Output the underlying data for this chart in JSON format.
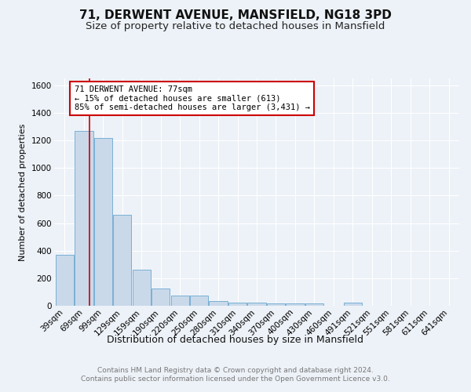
{
  "title": "71, DERWENT AVENUE, MANSFIELD, NG18 3PD",
  "subtitle": "Size of property relative to detached houses in Mansfield",
  "xlabel": "Distribution of detached houses by size in Mansfield",
  "ylabel": "Number of detached properties",
  "categories": [
    "39sqm",
    "69sqm",
    "99sqm",
    "129sqm",
    "159sqm",
    "190sqm",
    "220sqm",
    "250sqm",
    "280sqm",
    "310sqm",
    "340sqm",
    "370sqm",
    "400sqm",
    "430sqm",
    "460sqm",
    "491sqm",
    "521sqm",
    "551sqm",
    "581sqm",
    "611sqm",
    "641sqm"
  ],
  "values": [
    370,
    1270,
    1220,
    660,
    260,
    125,
    75,
    75,
    35,
    25,
    20,
    15,
    15,
    15,
    0,
    20,
    0,
    0,
    0,
    0,
    0
  ],
  "bar_color": "#c9d9ea",
  "bar_edge_color": "#7ab0d4",
  "ylim": [
    0,
    1650
  ],
  "yticks": [
    0,
    200,
    400,
    600,
    800,
    1000,
    1200,
    1400,
    1600
  ],
  "red_line_x": 1.27,
  "annotation_text": "71 DERWENT AVENUE: 77sqm\n← 15% of detached houses are smaller (613)\n85% of semi-detached houses are larger (3,431) →",
  "annotation_box_color": "#ffffff",
  "annotation_border_color": "#cc0000",
  "footer_text": "Contains HM Land Registry data © Crown copyright and database right 2024.\nContains public sector information licensed under the Open Government Licence v3.0.",
  "bg_color": "#edf2f8",
  "plot_bg_color": "#edf2f8",
  "grid_color": "#ffffff",
  "title_fontsize": 11,
  "subtitle_fontsize": 9.5,
  "footer_fontsize": 6.5,
  "ylabel_fontsize": 8,
  "xlabel_fontsize": 9,
  "tick_fontsize": 7.5,
  "annot_fontsize": 7.5
}
